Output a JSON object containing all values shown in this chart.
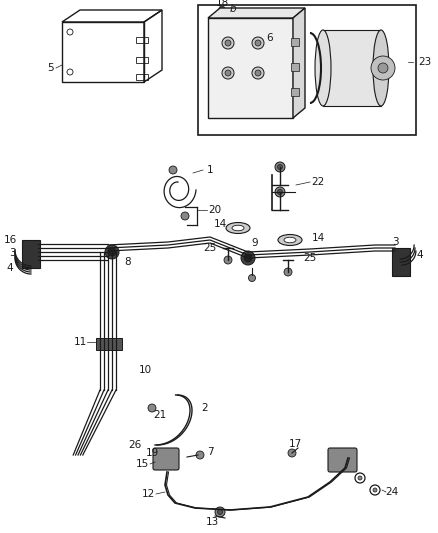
{
  "bg_color": "#ffffff",
  "line_color": "#1a1a1a",
  "font_size": 7.5,
  "figsize": [
    4.38,
    5.33
  ],
  "dpi": 100
}
